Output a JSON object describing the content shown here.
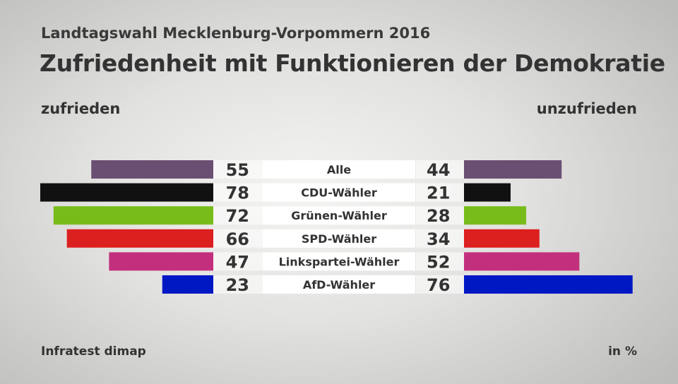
{
  "header": {
    "subtitle": "Landtagswahl Mecklenburg-Vorpommern 2016",
    "title": "Zufriedenheit mit Funktionieren der Demokratie"
  },
  "labels": {
    "left": "zufrieden",
    "right": "unzufrieden"
  },
  "footer": {
    "source": "Infratest dimap",
    "unit": "in %"
  },
  "chart_data": {
    "type": "bar",
    "orientation": "horizontal-diverging",
    "title": "Zufriedenheit mit Funktionieren der Demokratie",
    "subtitle": "Landtagswahl Mecklenburg-Vorpommern 2016",
    "unit": "in %",
    "categories": [
      "Alle",
      "CDU-Wähler",
      "Grünen-Wähler",
      "SPD-Wähler",
      "Linkspartei-Wähler",
      "AfD-Wähler"
    ],
    "colors": [
      "#6b4f72",
      "#111111",
      "#78bc1b",
      "#dc1f1f",
      "#c2307d",
      "#0018c4"
    ],
    "series": [
      {
        "name": "zufrieden",
        "side": "left",
        "values": [
          55,
          78,
          72,
          66,
          47,
          23
        ]
      },
      {
        "name": "unzufrieden",
        "side": "right",
        "values": [
          44,
          21,
          28,
          34,
          52,
          76
        ]
      }
    ],
    "xlim": [
      0,
      78
    ]
  }
}
